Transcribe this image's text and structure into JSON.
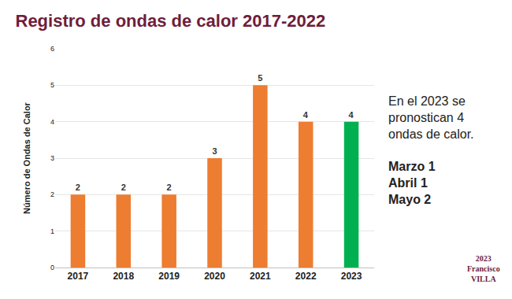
{
  "chart_data": {
    "type": "bar",
    "title": "Registro de ondas de calor 2017-2022",
    "y_label": "Número de Ondas de Calor",
    "categories": [
      "2017",
      "2018",
      "2019",
      "2020",
      "2021",
      "2022",
      "2023"
    ],
    "values": [
      2,
      2,
      2,
      3,
      5,
      4,
      4
    ],
    "colors": [
      "#ed7d31",
      "#ed7d31",
      "#ed7d31",
      "#ed7d31",
      "#ed7d31",
      "#ed7d31",
      "#00b050"
    ],
    "ylim": [
      0,
      6
    ],
    "yticks": [
      0,
      1,
      2,
      3,
      4,
      5,
      6
    ],
    "grid": true,
    "data_labels": true,
    "annotations": {
      "note": [
        "En el 2023 se",
        "pronostican 4",
        "ondas de calor."
      ],
      "forecast": [
        "Marzo 1",
        "Abril 1",
        "Mayo 2"
      ],
      "logo": [
        "2023",
        "Francisco",
        "VILLA"
      ]
    }
  }
}
